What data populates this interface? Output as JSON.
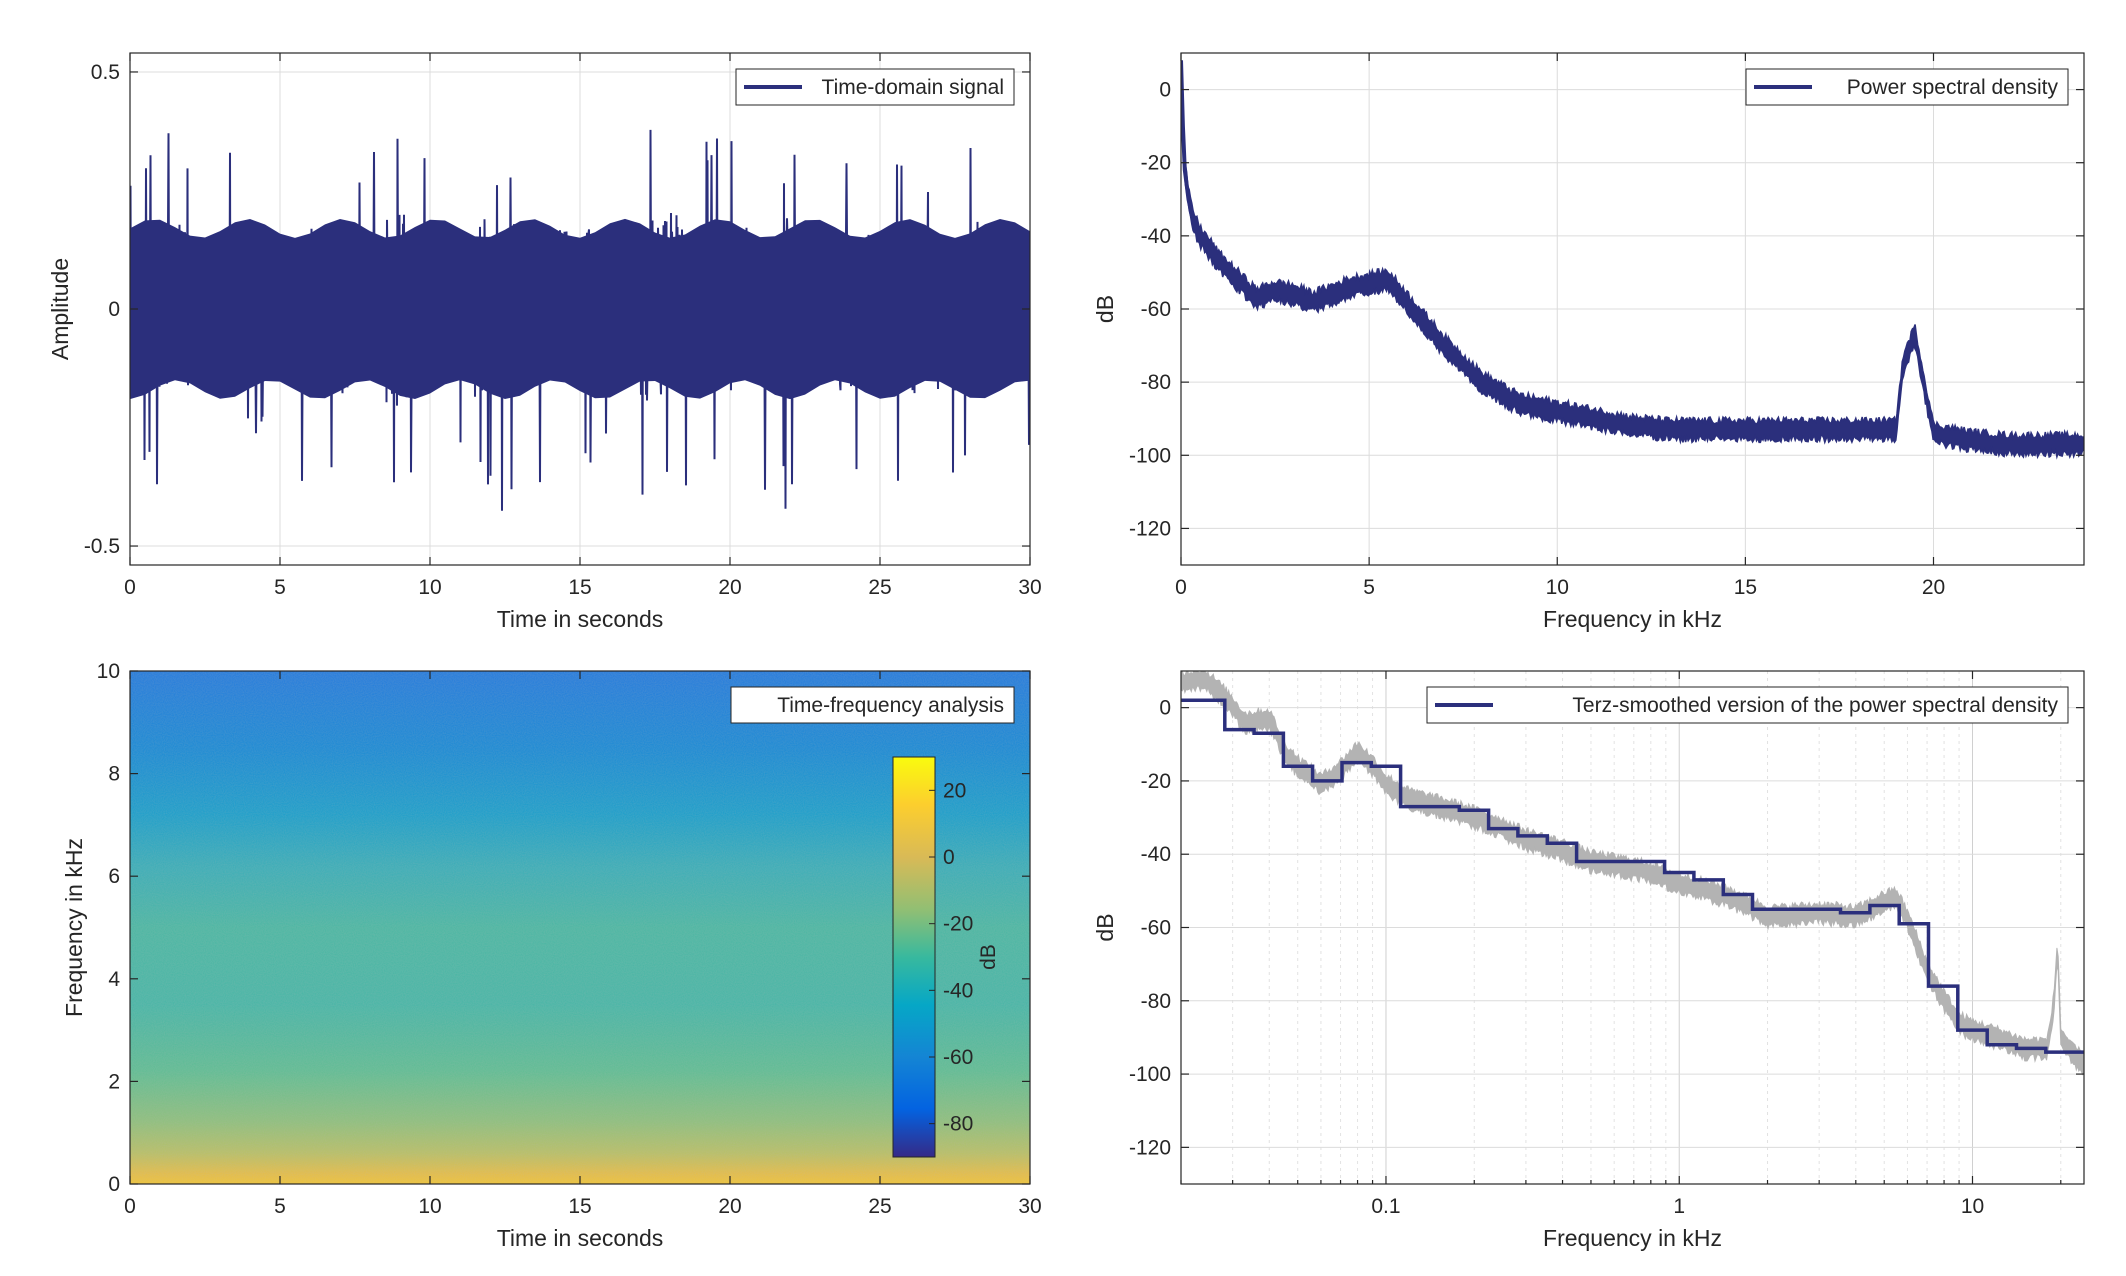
{
  "figure": {
    "background": "#ffffff",
    "series_color": "#2b2f7c",
    "secondary_color": "#b3b3b3",
    "grid": true
  },
  "chart_data": [
    {
      "id": "time_domain",
      "type": "line",
      "title": "",
      "xlabel": "Time in seconds",
      "ylabel": "Amplitude",
      "xlim": [
        0,
        30
      ],
      "ylim": [
        -0.54,
        0.54
      ],
      "xticks": [
        0,
        5,
        10,
        15,
        20,
        25,
        30
      ],
      "xticklabels": [
        "0",
        "5",
        "10",
        "15",
        "20",
        "25",
        "30"
      ],
      "yticks": [
        -0.5,
        0,
        0.5
      ],
      "yticklabels": [
        "-0.5",
        "0",
        "0.5"
      ],
      "legend": {
        "entries": [
          "Time-domain signal"
        ],
        "placement": "top-right"
      },
      "series": [
        {
          "name": "Time-domain signal",
          "color": "#2b2f7c",
          "description": "dense noise-like audio waveform, typical envelope about ±0.2, peaks up to about ±0.43",
          "envelope": {
            "t": [
              0,
              1,
              2,
              3,
              4,
              5,
              6,
              7,
              8,
              9,
              10,
              11,
              12,
              13,
              14,
              15,
              16,
              17,
              18,
              19,
              20,
              21,
              22,
              23,
              24,
              25,
              26,
              27,
              28,
              29,
              30
            ],
            "upper": [
              0.23,
              0.33,
              0.29,
              0.27,
              0.26,
              0.25,
              0.28,
              0.33,
              0.27,
              0.36,
              0.26,
              0.27,
              0.29,
              0.32,
              0.27,
              0.28,
              0.3,
              0.31,
              0.42,
              0.3,
              0.3,
              0.33,
              0.29,
              0.27,
              0.32,
              0.28,
              0.3,
              0.27,
              0.31,
              0.26,
              0.26
            ],
            "lower": [
              -0.23,
              -0.35,
              -0.3,
              -0.29,
              -0.27,
              -0.26,
              -0.31,
              -0.3,
              -0.29,
              -0.37,
              -0.28,
              -0.31,
              -0.4,
              -0.31,
              -0.3,
              -0.33,
              -0.29,
              -0.35,
              -0.37,
              -0.3,
              -0.3,
              -0.3,
              -0.36,
              -0.29,
              -0.32,
              -0.33,
              -0.29,
              -0.28,
              -0.33,
              -0.29,
              -0.26
            ]
          }
        }
      ]
    },
    {
      "id": "psd",
      "type": "line",
      "title": "",
      "xlabel": "Frequency in kHz",
      "ylabel": "dB",
      "xlim": [
        0,
        24
      ],
      "ylim": [
        -130,
        10
      ],
      "xticks": [
        0,
        5,
        10,
        15,
        20
      ],
      "xticklabels": [
        "0",
        "5",
        "10",
        "15",
        "20"
      ],
      "yticks": [
        -120,
        -100,
        -80,
        -60,
        -40,
        -20,
        0
      ],
      "yticklabels": [
        "-120",
        "-100",
        "-80",
        "-60",
        "-40",
        "-20",
        "0"
      ],
      "legend": {
        "entries": [
          "Power spectral density"
        ],
        "placement": "top-right"
      },
      "series": [
        {
          "name": "Power spectral density",
          "color": "#2b2f7c",
          "x": [
            0,
            0.05,
            0.1,
            0.2,
            0.3,
            0.5,
            0.8,
            1.0,
            1.5,
            2.0,
            2.5,
            3.0,
            3.5,
            4.0,
            4.5,
            5.0,
            5.5,
            6.0,
            7.0,
            8.0,
            9.0,
            10.0,
            11.0,
            12.0,
            13.0,
            14.0,
            15.0,
            16.0,
            17.0,
            18.0,
            19.0,
            19.2,
            19.5,
            19.7,
            20.0,
            21.0,
            22.0,
            23.0,
            24.0
          ],
          "y": [
            8,
            -10,
            -22,
            -30,
            -35,
            -40,
            -44,
            -47,
            -52,
            -57,
            -55,
            -56,
            -58,
            -56,
            -54,
            -53,
            -52,
            -58,
            -70,
            -80,
            -86,
            -88,
            -90,
            -92,
            -93,
            -93,
            -93,
            -93,
            -93,
            -93,
            -93,
            -75,
            -67,
            -78,
            -94,
            -96,
            -97,
            -97,
            -97
          ],
          "band_halfwidth_db": 2.5
        }
      ]
    },
    {
      "id": "spectrogram",
      "type": "heatmap",
      "title": "",
      "xlabel": "Time in seconds",
      "ylabel": "Frequency in kHz",
      "xlim": [
        0,
        30
      ],
      "ylim": [
        0,
        10
      ],
      "xticks": [
        0,
        5,
        10,
        15,
        20,
        25,
        30
      ],
      "xticklabels": [
        "0",
        "5",
        "10",
        "15",
        "20",
        "25",
        "30"
      ],
      "yticks": [
        0,
        2,
        4,
        6,
        8,
        10
      ],
      "yticklabels": [
        "0",
        "2",
        "4",
        "6",
        "8",
        "10"
      ],
      "legend": {
        "entries": [
          "Time-frequency analysis"
        ],
        "placement": "top-right"
      },
      "colorbar": {
        "label": "dB",
        "range": [
          -90,
          30
        ],
        "ticks": [
          -80,
          -60,
          -40,
          -20,
          0,
          20
        ],
        "ticklabels": [
          "-80",
          "-60",
          "-40",
          "-20",
          "0",
          "20"
        ],
        "colormap": "parula",
        "placement": "inside-right"
      },
      "level_profile": {
        "frequency_khz": [
          0,
          0.2,
          0.5,
          1.0,
          1.5,
          2.0,
          3.0,
          4.0,
          5.0,
          6.0,
          7.0,
          8.0,
          9.0,
          10.0
        ],
        "level_db": [
          0,
          -10,
          -15,
          -20,
          -24,
          -28,
          -30,
          -31,
          -30,
          -32,
          -42,
          -50,
          -56,
          -60
        ]
      }
    },
    {
      "id": "terz_psd",
      "type": "line",
      "title": "",
      "xlabel": "Frequency in kHz",
      "ylabel": "dB",
      "xscale": "log",
      "xlim": [
        0.02,
        24
      ],
      "ylim": [
        -130,
        10
      ],
      "xticks": [
        0.1,
        1,
        10
      ],
      "xticklabels": [
        "0.1",
        "1",
        "10"
      ],
      "yticks": [
        -120,
        -100,
        -80,
        -60,
        -40,
        -20,
        0
      ],
      "yticklabels": [
        "-120",
        "-100",
        "-80",
        "-60",
        "-40",
        "-20",
        "0"
      ],
      "legend": {
        "entries": [
          "Terz-smoothed version of the power spectral density"
        ],
        "placement": "top-right"
      },
      "series": [
        {
          "name": "Terz-smoothed version of the power spectral density",
          "color": "#2b2f7c",
          "step_edges_khz": [
            0.02,
            0.0282,
            0.0355,
            0.0447,
            0.0562,
            0.0708,
            0.0891,
            0.1122,
            0.1413,
            0.1778,
            0.2239,
            0.2818,
            0.3548,
            0.4467,
            0.5623,
            0.7079,
            0.8913,
            1.122,
            1.413,
            1.778,
            2.239,
            2.818,
            3.548,
            4.467,
            5.623,
            7.079,
            8.913,
            11.22,
            14.13,
            17.78,
            24
          ],
          "step_values_db": [
            2,
            -6,
            -7,
            -16,
            -20,
            -15,
            -16,
            -27,
            -27,
            -28,
            -33,
            -35,
            -37,
            -42,
            -42,
            -42,
            -45,
            -47,
            -51,
            -55,
            -55,
            -55,
            -56,
            -54,
            -59,
            -76,
            -88,
            -92,
            -93,
            -94
          ]
        },
        {
          "name": "",
          "color": "#b3b3b3",
          "x": [
            0.02,
            0.024,
            0.028,
            0.033,
            0.04,
            0.045,
            0.05,
            0.06,
            0.07,
            0.08,
            0.09,
            0.1,
            0.12,
            0.15,
            0.2,
            0.3,
            0.5,
            0.8,
            1.0,
            1.5,
            2.0,
            3.0,
            4.0,
            5.0,
            5.5,
            6.0,
            7.0,
            8.0,
            9.0,
            10.0,
            12.0,
            15.0,
            18.0,
            19.0,
            19.5,
            20.0,
            22.0,
            24.0
          ],
          "y": [
            7,
            8,
            3,
            -4,
            -3,
            -12,
            -16,
            -21,
            -17,
            -12,
            -16,
            -21,
            -25,
            -27,
            -30,
            -36,
            -42,
            -45,
            -48,
            -52,
            -57,
            -56,
            -57,
            -53,
            -52,
            -58,
            -72,
            -80,
            -86,
            -88,
            -90,
            -93,
            -93,
            -80,
            -65,
            -90,
            -95,
            -97
          ],
          "band_halfwidth_db": 2.5
        }
      ]
    }
  ]
}
